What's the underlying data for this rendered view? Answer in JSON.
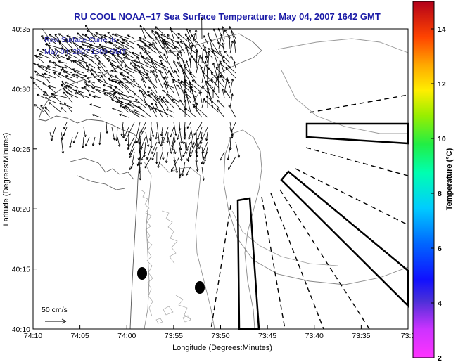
{
  "title": "RU COOL  NOAA−17  Sea Surface Temperature:  May 04, 2007 1642 GMT",
  "inset": {
    "line1": "Raw Surface Currents",
    "line2": "May 04, 2007 1600 GMT"
  },
  "x_axis": {
    "label": "Longitude (Degrees:Minutes)",
    "ticks": [
      "74:10",
      "74:05",
      "74:00",
      "73:55",
      "73:50",
      "73:45",
      "73:40",
      "73:35",
      "73:3"
    ]
  },
  "y_axis": {
    "label": "Latitude (Degrees:Minutes)",
    "ticks": [
      "40:35",
      "40:30",
      "40:25",
      "40:20",
      "40:15",
      "40:10"
    ]
  },
  "scale_arrow": {
    "label": "50 cm/s"
  },
  "colorbar": {
    "label": "Temperature (°C)",
    "ticks": [
      "14",
      "12",
      "10",
      "8",
      "6",
      "4",
      "2"
    ],
    "min": 2,
    "max": 15
  }
}
